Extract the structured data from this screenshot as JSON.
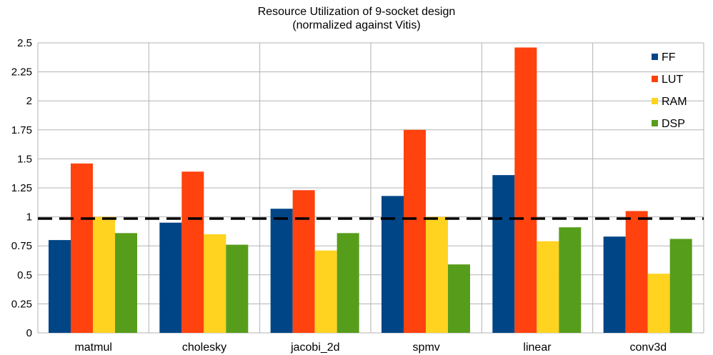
{
  "chart_data": {
    "type": "bar",
    "title": "Resource Utilization of 9-socket design",
    "subtitle": "(normalized against Vitis)",
    "xlabel": "",
    "ylabel": "",
    "categories": [
      "matmul",
      "cholesky",
      "jacobi_2d",
      "spmv",
      "linear",
      "conv3d"
    ],
    "series": [
      {
        "name": "FF",
        "color": "#004586",
        "values": [
          0.8,
          0.95,
          1.07,
          1.18,
          1.36,
          0.83
        ]
      },
      {
        "name": "LUT",
        "color": "#ff420e",
        "values": [
          1.46,
          1.39,
          1.23,
          1.75,
          2.46,
          1.05
        ]
      },
      {
        "name": "RAM",
        "color": "#ffd320",
        "values": [
          1.0,
          0.85,
          0.71,
          1.0,
          0.79,
          0.51
        ]
      },
      {
        "name": "DSP",
        "color": "#579d1c",
        "values": [
          0.86,
          0.76,
          0.86,
          0.59,
          0.91,
          0.81
        ]
      }
    ],
    "ylim": [
      0,
      2.5
    ],
    "yticks": [
      "0",
      "0.25",
      "0.5",
      "0.75",
      "1",
      "1.25",
      "1.5",
      "1.75",
      "2",
      "2.25",
      "2.5"
    ],
    "reference_line": 0.985,
    "grid": true,
    "legend_position": "top-right"
  }
}
